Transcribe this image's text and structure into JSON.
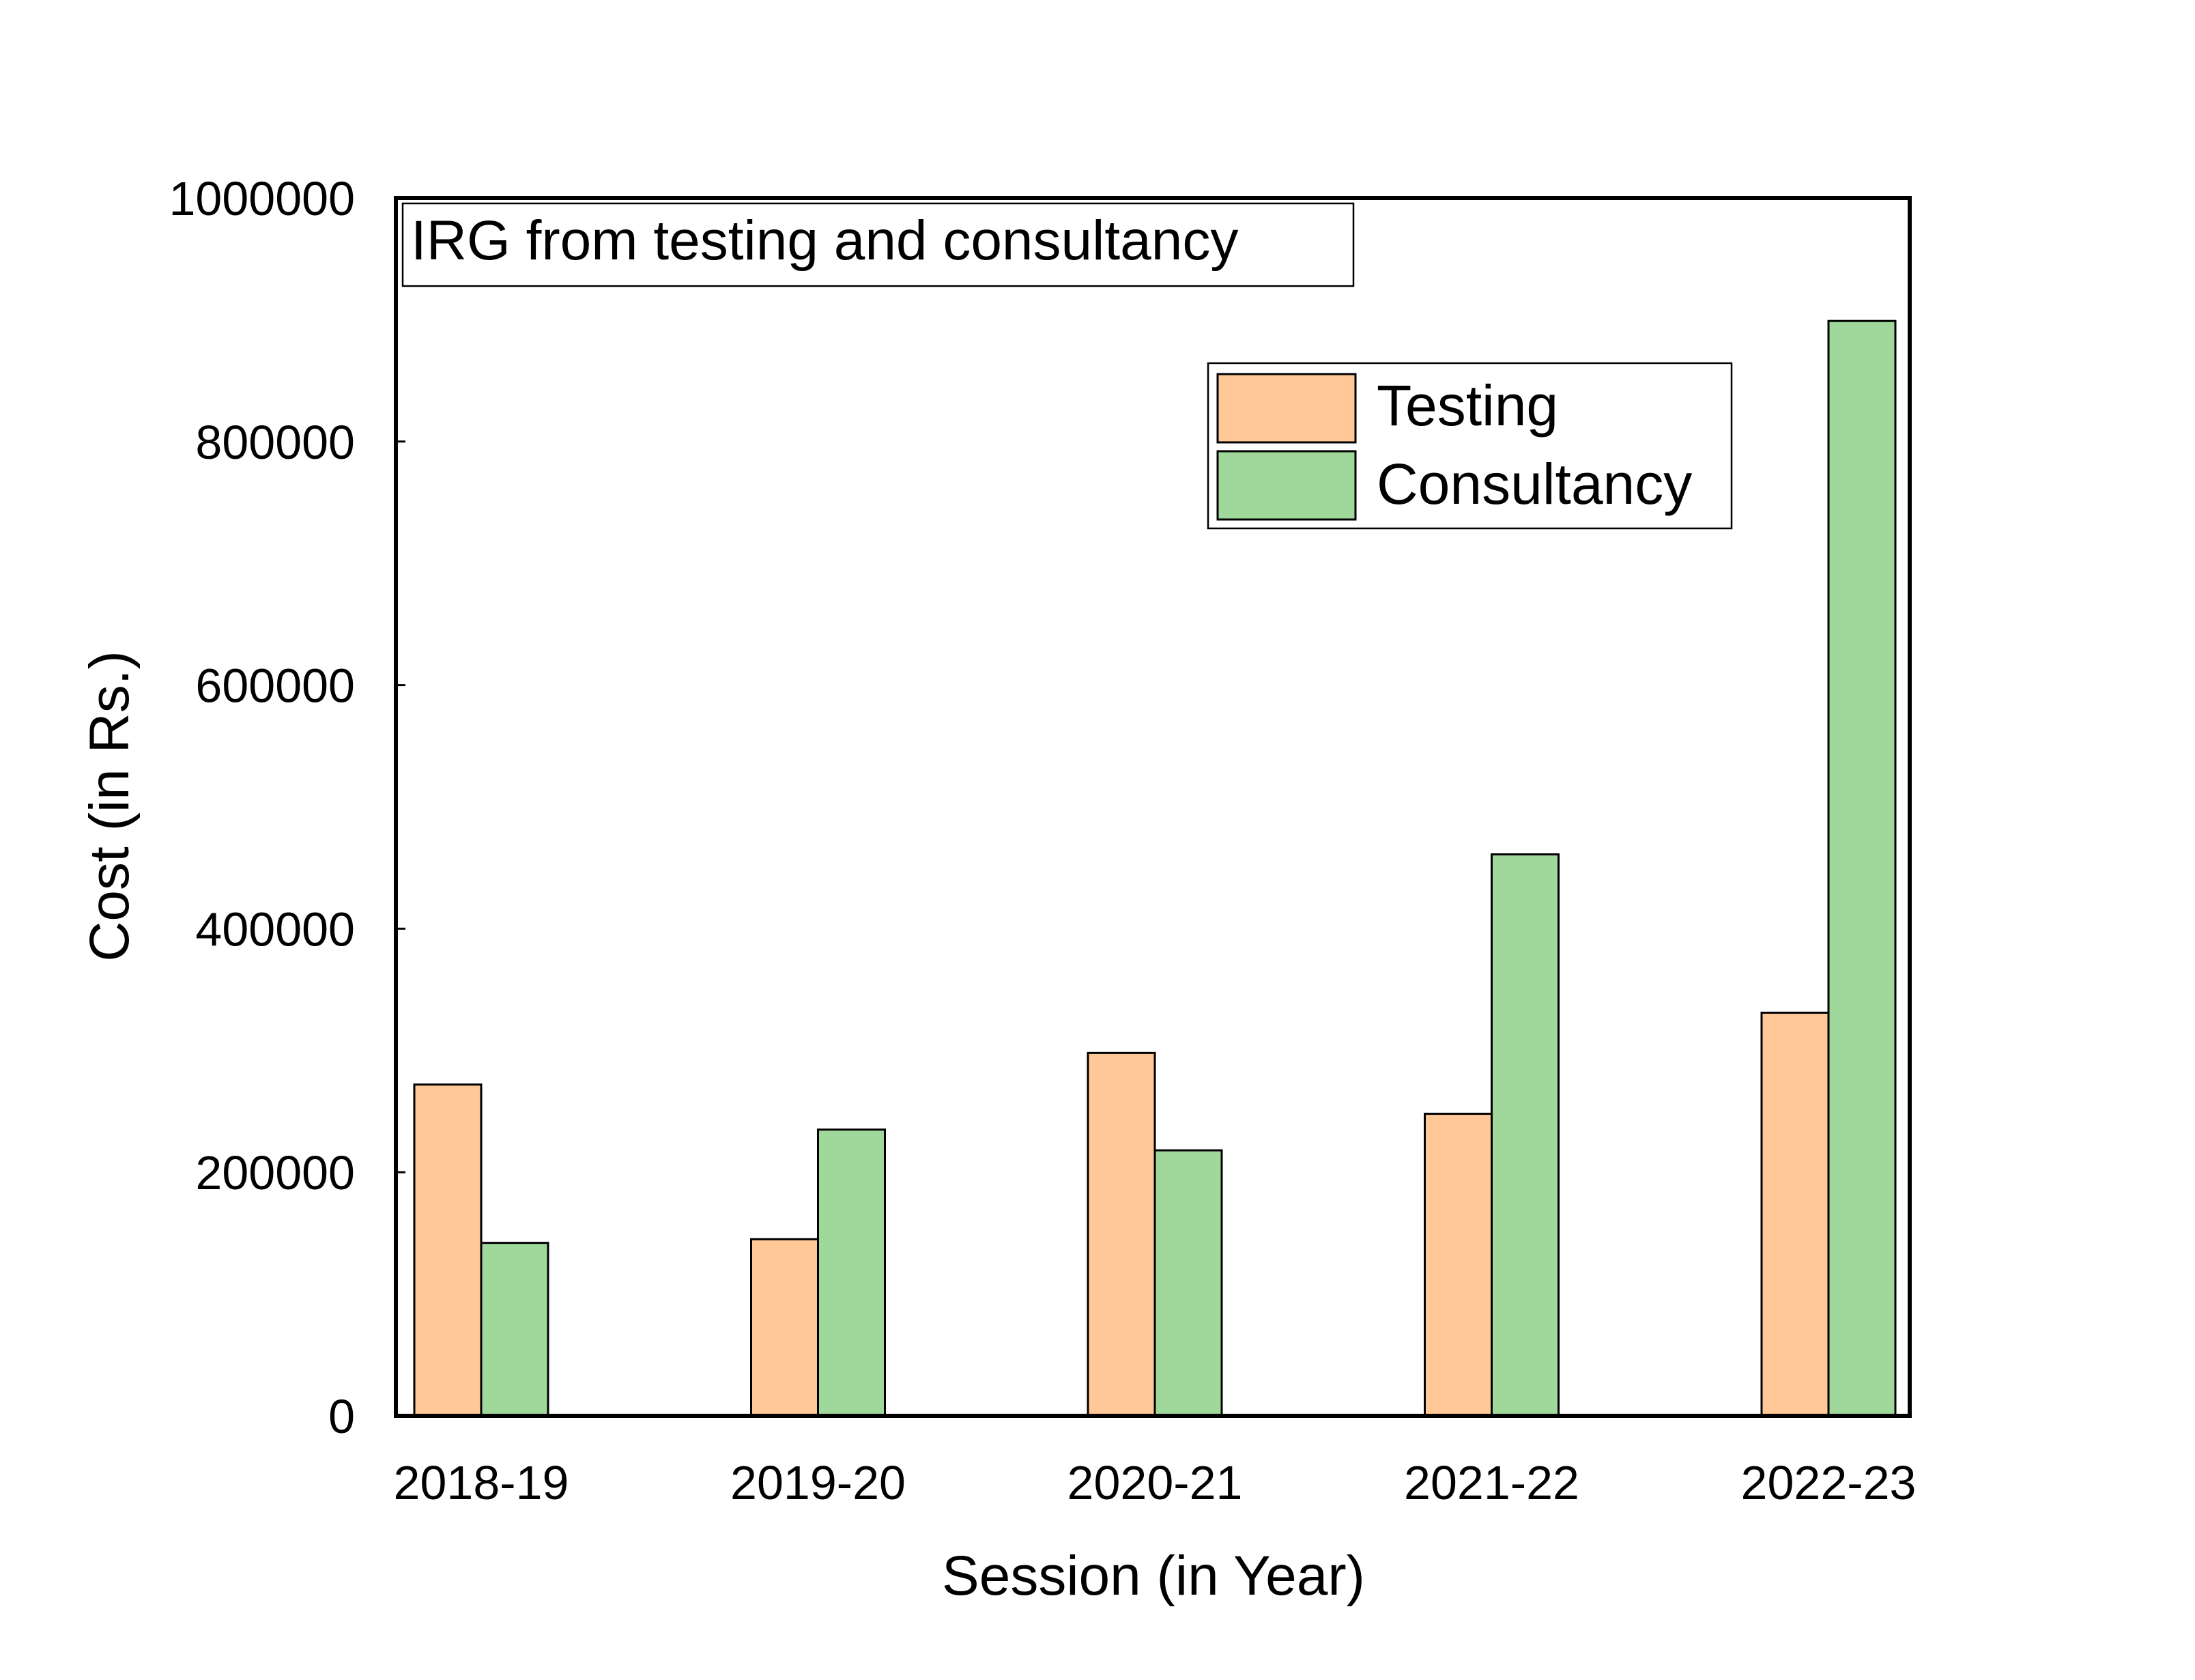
{
  "chart_data": {
    "type": "bar",
    "title": "IRG from testing and consultancy",
    "xlabel": "Session (in Year)",
    "ylabel": "Cost (in Rs.)",
    "categories": [
      "2018-19",
      "2019-20",
      "2020-21",
      "2021-22",
      "2022-23"
    ],
    "series": [
      {
        "name": "Testing",
        "color": "#FFC896",
        "values": [
          272000,
          145000,
          298000,
          248000,
          331000
        ]
      },
      {
        "name": "Consultancy",
        "color": "#A0D89C",
        "values": [
          142000,
          235000,
          218000,
          461000,
          899000
        ]
      }
    ],
    "ylim": [
      0,
      1000000
    ],
    "yticks": [
      0,
      200000,
      400000,
      600000,
      800000,
      1000000
    ],
    "ytick_labels": [
      "0",
      "200000",
      "400000",
      "600000",
      "800000",
      "1000000"
    ],
    "grid": false,
    "legend_position": "top-right"
  }
}
